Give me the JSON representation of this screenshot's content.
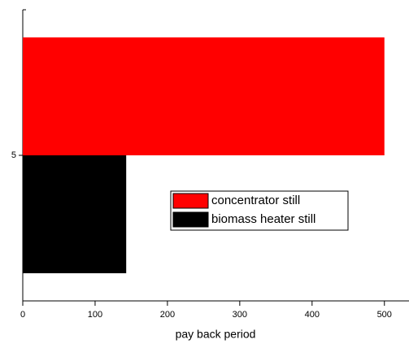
{
  "chart_data": {
    "type": "barh",
    "xlabel": "pay back period",
    "categories": [
      "5"
    ],
    "series": [
      {
        "name": "concentrator still",
        "color": "#ff0000",
        "values": [
          500
        ]
      },
      {
        "name": "biomass heater still",
        "color": "#000000",
        "values": [
          143
        ]
      }
    ],
    "xlim": [
      0,
      534
    ],
    "xticks": [
      0,
      100,
      200,
      300,
      400,
      500
    ],
    "legend": "center-right"
  }
}
